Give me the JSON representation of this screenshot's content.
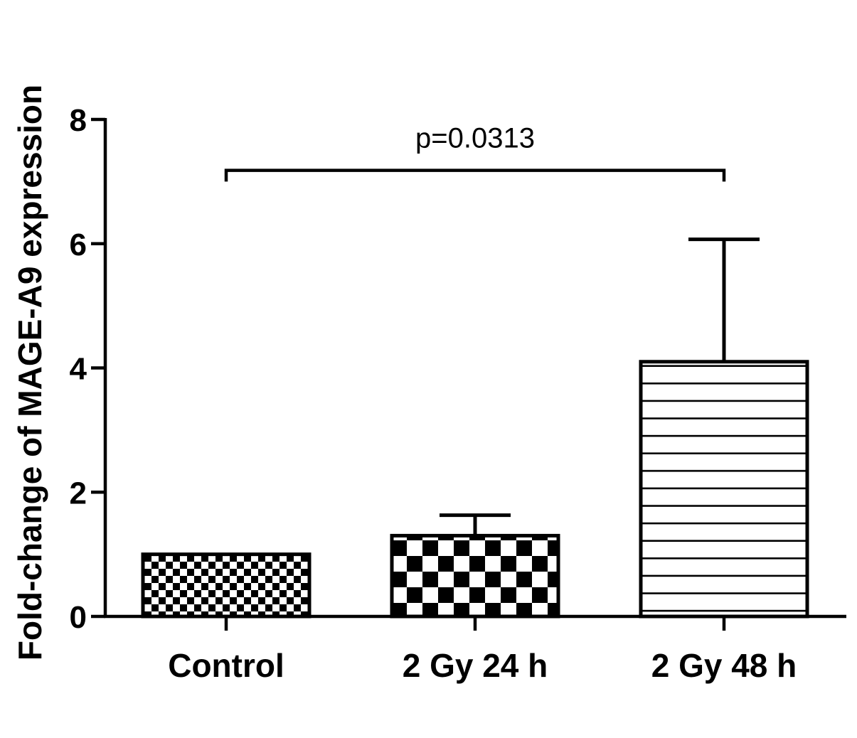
{
  "chart_data": {
    "type": "bar",
    "categories": [
      "Control",
      "2 Gy 24 h",
      "2 Gy 48 h"
    ],
    "values": [
      1.0,
      1.3,
      4.1
    ],
    "error_upper": [
      1.0,
      1.63,
      6.07
    ],
    "patterns": [
      "small-checker",
      "large-checker",
      "horizontal-lines"
    ],
    "ylabel": "Fold-change of  MAGE-A9 expression",
    "xlabel": "",
    "ylim": [
      0,
      8
    ],
    "yticks": [
      0,
      2,
      4,
      6,
      8
    ],
    "ytick_labels": [
      "0",
      "2",
      "4",
      "6",
      "8"
    ],
    "grid": false,
    "annotation": {
      "text": "p=0.0313",
      "from_category": 0,
      "to_category": 2,
      "bracket_y": 7.0,
      "bracket_top_y": 7.18
    },
    "colors": {
      "bar_stroke": "#000000",
      "fill": "#000000",
      "background": "#ffffff"
    }
  }
}
